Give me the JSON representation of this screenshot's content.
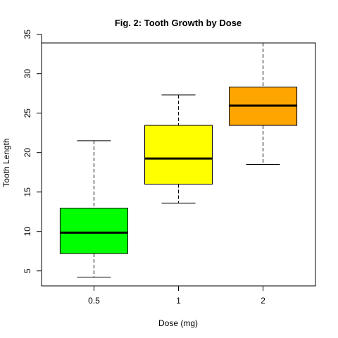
{
  "chart_data": {
    "type": "boxplot",
    "title": "Fig. 2: Tooth Growth by Dose",
    "xlabel": "Dose (mg)",
    "ylabel": "Tooth Length",
    "categories": [
      "0.5",
      "1",
      "2"
    ],
    "ylim": [
      3.1,
      33.9
    ],
    "yticks": [
      5,
      10,
      15,
      20,
      25,
      30,
      35
    ],
    "grid": false,
    "boxes": [
      {
        "category": "0.5",
        "min": 4.2,
        "q1": 7.2,
        "median": 9.85,
        "q3": 12.95,
        "max": 21.5,
        "color": "#00ff00"
      },
      {
        "category": "1",
        "min": 13.6,
        "q1": 16.0,
        "median": 19.25,
        "q3": 23.45,
        "max": 27.3,
        "color": "#ffff00"
      },
      {
        "category": "2",
        "min": 18.5,
        "q1": 23.45,
        "median": 25.95,
        "q3": 28.3,
        "max": 33.9,
        "color": "#ffa500"
      }
    ]
  }
}
